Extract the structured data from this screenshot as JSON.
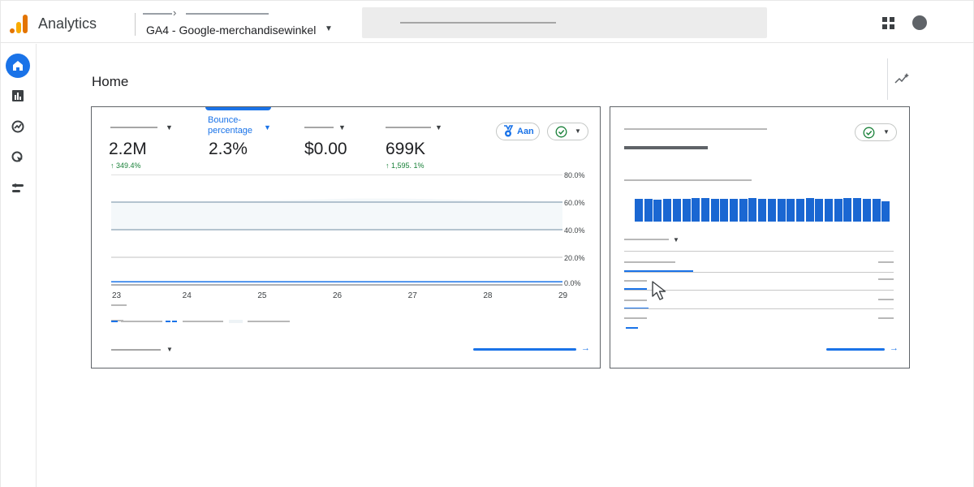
{
  "app": {
    "title": "Analytics"
  },
  "header": {
    "property_name": "GA4 - Google-merchandisewinkel"
  },
  "page": {
    "title": "Home"
  },
  "metrics": [
    {
      "value": "2.2M",
      "change": "349.4%"
    },
    {
      "label": "Bounce-percentage",
      "value": "2.3%",
      "change": ""
    },
    {
      "value": "$0.00",
      "change": ""
    },
    {
      "value": "699K",
      "change": "1,595. 1%"
    }
  ],
  "toggle": {
    "label": "Aan"
  },
  "chart_data": {
    "type": "line",
    "x": [
      "23",
      "24",
      "25",
      "26",
      "27",
      "28",
      "29"
    ],
    "y_ticks": [
      "80.0%",
      "60.0%",
      "40.0%",
      "20.0%",
      "0.0%"
    ],
    "ylim": [
      0,
      80
    ],
    "series": [
      {
        "values": [
          2.3,
          2.3,
          2.3,
          2.3,
          2.3,
          2.3,
          2.3
        ]
      }
    ]
  },
  "sidebar": {
    "items": [
      {
        "icon": "home-icon"
      },
      {
        "icon": "reports-icon"
      },
      {
        "icon": "explore-icon"
      },
      {
        "icon": "advertising-icon"
      },
      {
        "icon": "configure-icon"
      }
    ]
  },
  "colors": {
    "accent": "#1a73e8",
    "positive": "#188038",
    "logo_orange": "#e37400",
    "logo_yellow": "#f9ab00"
  }
}
